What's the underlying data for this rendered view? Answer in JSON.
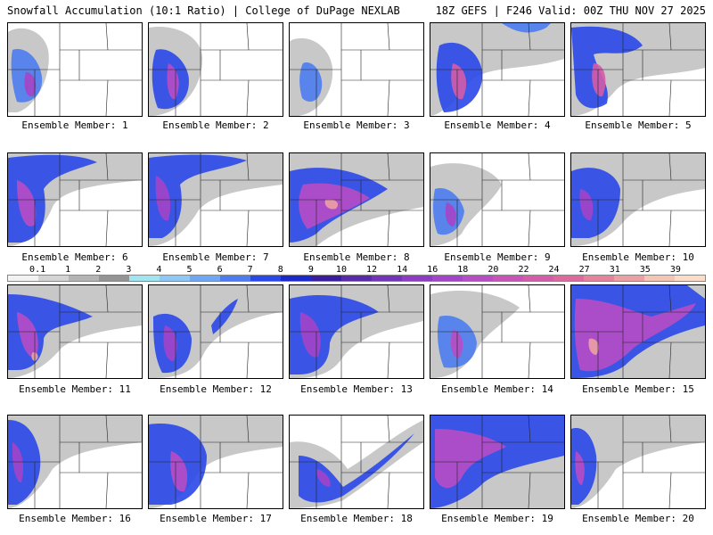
{
  "header": {
    "left_title": "Snowfall Accumulation (10:1 Ratio) | College of DuPage NEXLAB",
    "right_title": "18Z GEFS | F246 Valid: 00Z THU NOV 27 2025"
  },
  "members": [
    {
      "label": "Ensemble Member: 1"
    },
    {
      "label": "Ensemble Member: 2"
    },
    {
      "label": "Ensemble Member: 3"
    },
    {
      "label": "Ensemble Member: 4"
    },
    {
      "label": "Ensemble Member: 5"
    },
    {
      "label": "Ensemble Member: 6"
    },
    {
      "label": "Ensemble Member: 7"
    },
    {
      "label": "Ensemble Member: 8"
    },
    {
      "label": "Ensemble Member: 9"
    },
    {
      "label": "Ensemble Member: 10"
    },
    {
      "label": "Ensemble Member: 11"
    },
    {
      "label": "Ensemble Member: 12"
    },
    {
      "label": "Ensemble Member: 13"
    },
    {
      "label": "Ensemble Member: 14"
    },
    {
      "label": "Ensemble Member: 15"
    },
    {
      "label": "Ensemble Member: 16"
    },
    {
      "label": "Ensemble Member: 17"
    },
    {
      "label": "Ensemble Member: 18"
    },
    {
      "label": "Ensemble Member: 19"
    },
    {
      "label": "Ensemble Member: 20"
    }
  ],
  "colorbar": {
    "labels": [
      "0.1",
      "1",
      "2",
      "3",
      "4",
      "5",
      "6",
      "7",
      "8",
      "9",
      "10",
      "12",
      "14",
      "16",
      "18",
      "20",
      "22",
      "24",
      "27",
      "31",
      "35",
      "39"
    ],
    "colors": [
      "#f2f2f2",
      "#d4d4d4",
      "#b4b4b4",
      "#949494",
      "#a0e6f0",
      "#8ec8f8",
      "#6ea8f4",
      "#4c7cf0",
      "#2a48e8",
      "#1c28c8",
      "#3a1c9c",
      "#5a2aa8",
      "#7434b8",
      "#8e3cc4",
      "#a444c8",
      "#b84cc4",
      "#c854b8",
      "#d45ca8",
      "#dc6a9c",
      "#e4849c",
      "#eca0a4",
      "#f4c4b4",
      "#fadcc8"
    ]
  }
}
